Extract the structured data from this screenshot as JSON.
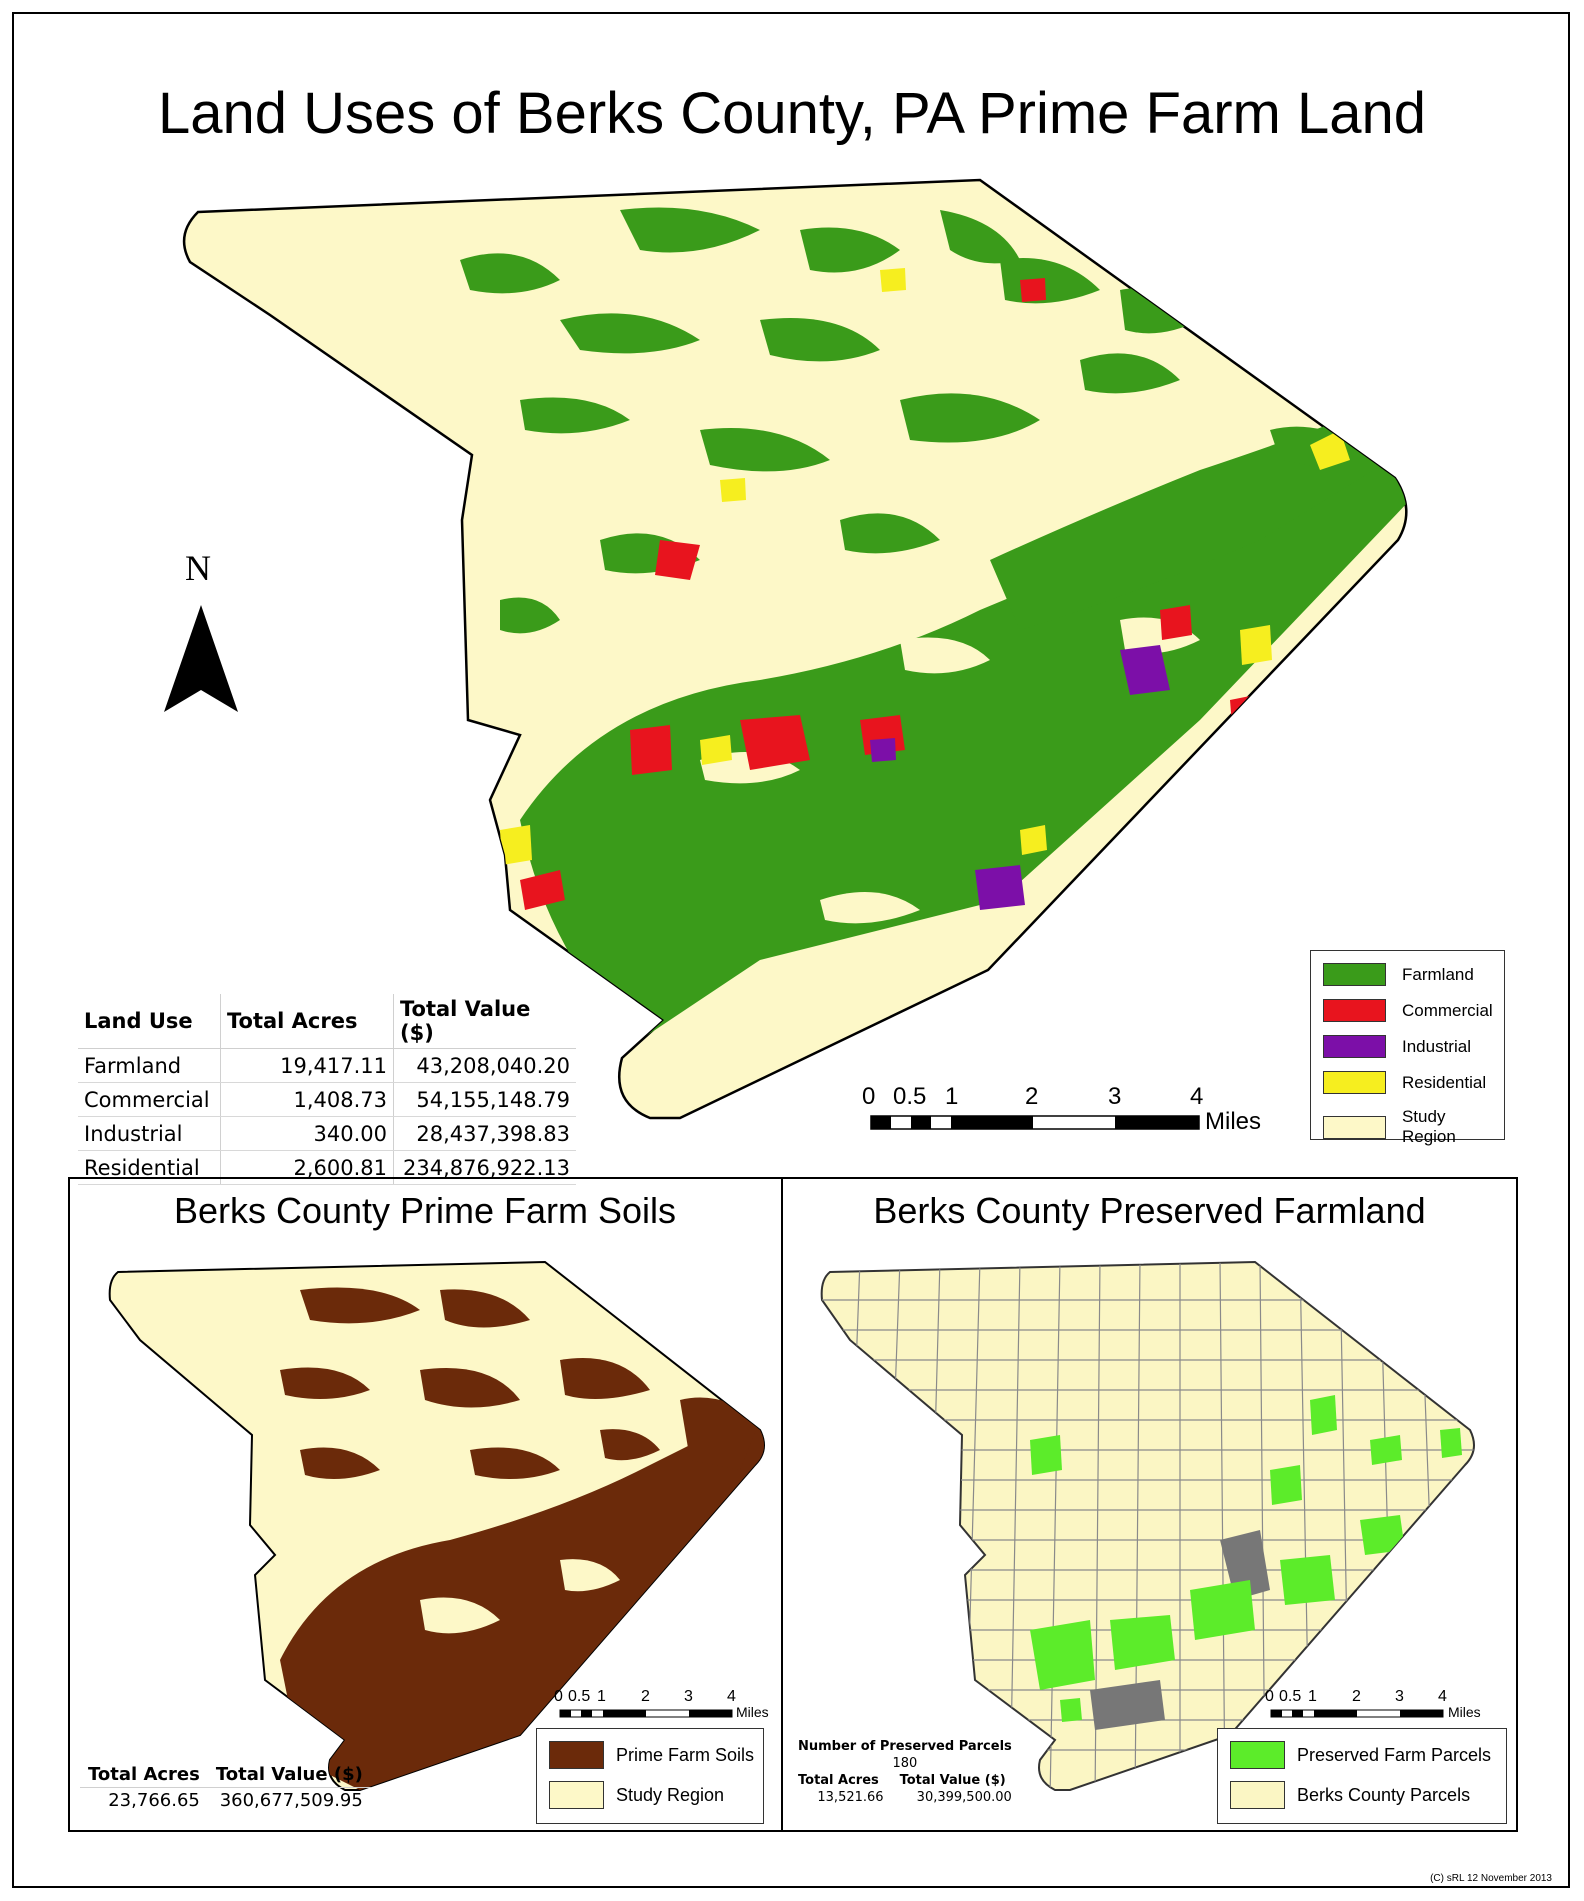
{
  "title": "Land Uses of Berks County, PA Prime Farm Land",
  "north_label": "N",
  "colors": {
    "farmland": "#3a9b1a",
    "commercial": "#e8141e",
    "industrial": "#7c0fa8",
    "residential": "#f6ee1f",
    "study_region": "#fdf8c8",
    "prime_soils": "#6b2a0a",
    "preserved": "#5cec2a",
    "parcels": "#fbf6c4"
  },
  "land_use_table": {
    "headers": [
      "Land Use",
      "Total Acres",
      "Total Value ($)"
    ],
    "rows": [
      {
        "use": "Farmland",
        "acres": "19,417.11",
        "value": "43,208,040.20"
      },
      {
        "use": "Commercial",
        "acres": "1,408.73",
        "value": "54,155,148.79"
      },
      {
        "use": "Industrial",
        "acres": "340.00",
        "value": "28,437,398.83"
      },
      {
        "use": "Residential",
        "acres": "2,600.81",
        "value": "234,876,922.13"
      }
    ]
  },
  "main_legend": [
    "Farmland",
    "Commercial",
    "Industrial",
    "Residential",
    "Study Region"
  ],
  "scale_bar": {
    "ticks": [
      "0",
      "0.5",
      "1",
      "2",
      "3",
      "4"
    ],
    "unit": "Miles"
  },
  "soils_map": {
    "title": "Berks County Prime Farm Soils",
    "legend": [
      "Prime Farm Soils",
      "Study Region"
    ],
    "stats_headers": [
      "Total Acres",
      "Total Value ($)"
    ],
    "stats_values": [
      "23,766.65",
      "360,677,509.95"
    ]
  },
  "preserved_map": {
    "title": "Berks County Preserved Farmland",
    "legend": [
      "Preserved Farm Parcels",
      "Berks County Parcels"
    ],
    "count_label": "Number of Preserved Parcels",
    "count_value": "180",
    "stats_headers": [
      "Total Acres",
      "Total Value ($)"
    ],
    "stats_values": [
      "13,521.66",
      "30,399,500.00"
    ]
  },
  "copyright": "(C) sRL 12 November 2013"
}
